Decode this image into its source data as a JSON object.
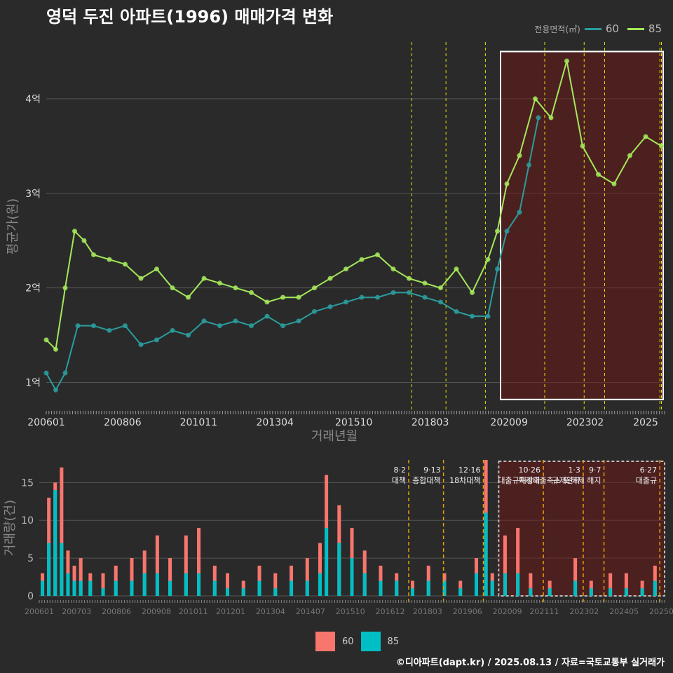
{
  "title": "영덕 두진 아파트(1996) 매매가격 변화",
  "legend": {
    "title": "전용면적(㎡)",
    "items": [
      {
        "label": "60",
        "line_color": "#2a9d9d",
        "bar_color": "#f8766d"
      },
      {
        "label": "85",
        "line_color": "#a4e85a",
        "bar_color": "#00bfc4"
      }
    ]
  },
  "credit": "©디아파트(dapt.kr) / 2025.08.13 / 자료=국토교통부 실거래가",
  "chart_data": [
    {
      "type": "line",
      "xlabel": "거래년월",
      "ylabel": "평균가(원)",
      "x_range": [
        2006.0,
        2025.6
      ],
      "ylim": [
        0.7,
        4.6
      ],
      "y_ticks": [
        {
          "v": 1,
          "label": "1억"
        },
        {
          "v": 2,
          "label": "2억"
        },
        {
          "v": 3,
          "label": "3억"
        },
        {
          "v": 4,
          "label": "4억"
        }
      ],
      "x_ticks": [
        {
          "v": 2006.0,
          "label": "200601"
        },
        {
          "v": 2008.42,
          "label": "200806"
        },
        {
          "v": 2010.83,
          "label": "201011"
        },
        {
          "v": 2013.25,
          "label": "201304"
        },
        {
          "v": 2015.75,
          "label": "201510"
        },
        {
          "v": 2018.17,
          "label": "201803"
        },
        {
          "v": 2020.67,
          "label": "202009"
        },
        {
          "v": 2023.08,
          "label": "202302"
        },
        {
          "v": 2025.0,
          "label": "2025"
        }
      ],
      "policy_lines": [
        2017.58,
        2018.67,
        2019.92,
        2021.8,
        2023.05,
        2023.7,
        2025.45,
        2025.5
      ],
      "highlight_box": {
        "x": [
          2020.4,
          2025.6
        ],
        "y": [
          0.82,
          4.5
        ]
      },
      "series": [
        {
          "name": "60",
          "x": [
            2006.0,
            2006.3,
            2006.6,
            2007.0,
            2007.5,
            2008.0,
            2008.5,
            2009.0,
            2009.5,
            2010.0,
            2010.5,
            2011.0,
            2011.5,
            2012.0,
            2012.5,
            2013.0,
            2013.5,
            2014.0,
            2014.5,
            2015.0,
            2015.5,
            2016.0,
            2016.5,
            2017.0,
            2017.5,
            2018.0,
            2018.5,
            2019.0,
            2019.5,
            2020.0,
            2020.3,
            2020.6,
            2021.0,
            2021.3,
            2021.6
          ],
          "y": [
            1.1,
            0.92,
            1.1,
            1.6,
            1.6,
            1.55,
            1.6,
            1.4,
            1.45,
            1.55,
            1.5,
            1.65,
            1.6,
            1.65,
            1.6,
            1.7,
            1.6,
            1.65,
            1.75,
            1.8,
            1.85,
            1.9,
            1.9,
            1.95,
            1.95,
            1.9,
            1.85,
            1.75,
            1.7,
            1.7,
            2.2,
            2.6,
            2.8,
            3.3,
            3.8
          ]
        },
        {
          "name": "85",
          "x": [
            2006.0,
            2006.3,
            2006.6,
            2006.9,
            2007.2,
            2007.5,
            2008.0,
            2008.5,
            2009.0,
            2009.5,
            2010.0,
            2010.5,
            2011.0,
            2011.5,
            2012.0,
            2012.5,
            2013.0,
            2013.5,
            2014.0,
            2014.5,
            2015.0,
            2015.5,
            2016.0,
            2016.5,
            2017.0,
            2017.5,
            2018.0,
            2018.5,
            2019.0,
            2019.5,
            2020.0,
            2020.3,
            2020.6,
            2021.0,
            2021.5,
            2022.0,
            2022.5,
            2023.0,
            2023.5,
            2024.0,
            2024.5,
            2025.0,
            2025.5
          ],
          "y": [
            1.45,
            1.35,
            2.0,
            2.6,
            2.5,
            2.35,
            2.3,
            2.25,
            2.1,
            2.2,
            2.0,
            1.9,
            2.1,
            2.05,
            2.0,
            1.95,
            1.85,
            1.9,
            1.9,
            2.0,
            2.1,
            2.2,
            2.3,
            2.35,
            2.2,
            2.1,
            2.05,
            2.0,
            2.2,
            1.95,
            2.3,
            2.6,
            3.1,
            3.4,
            4.0,
            3.8,
            4.4,
            3.5,
            3.2,
            3.1,
            3.4,
            3.6,
            3.5
          ]
        }
      ]
    },
    {
      "type": "bar",
      "ylabel": "거래량(건)",
      "ylim": [
        0,
        18
      ],
      "y_ticks": [
        0,
        5,
        10,
        15
      ],
      "x_ticks": [
        {
          "v": 2006.0,
          "label": "200601"
        },
        {
          "v": 2007.17,
          "label": "200703"
        },
        {
          "v": 2008.42,
          "label": "200806"
        },
        {
          "v": 2009.67,
          "label": "200908"
        },
        {
          "v": 2010.83,
          "label": "201011"
        },
        {
          "v": 2012.0,
          "label": "201201"
        },
        {
          "v": 2013.25,
          "label": "201304"
        },
        {
          "v": 2014.5,
          "label": "201407"
        },
        {
          "v": 2015.75,
          "label": "201510"
        },
        {
          "v": 2017.0,
          "label": "201612"
        },
        {
          "v": 2018.17,
          "label": "201803"
        },
        {
          "v": 2019.42,
          "label": "201906"
        },
        {
          "v": 2020.67,
          "label": "202009"
        },
        {
          "v": 2021.83,
          "label": "202111"
        },
        {
          "v": 2023.08,
          "label": "202302"
        },
        {
          "v": 2024.33,
          "label": "202405"
        },
        {
          "v": 2025.5,
          "label": "20250"
        }
      ],
      "annotations": [
        {
          "x": 2017.58,
          "date": "8·2",
          "text": "대책"
        },
        {
          "x": 2018.67,
          "date": "9·13",
          "text": "종합대책"
        },
        {
          "x": 2019.92,
          "date": "12·16",
          "text": "18차대책"
        },
        {
          "x": 2021.8,
          "date": "10·26",
          "text": "대출규제강화"
        },
        {
          "x": 2023.05,
          "date": "1·3",
          "text": "규제완화"
        },
        {
          "x": 2023.7,
          "date": "9·7",
          "text": "특례대출축소 토허제 해지"
        },
        {
          "x": 2025.45,
          "date": "6·27",
          "text": "대출규"
        }
      ],
      "series": [
        {
          "name": "60",
          "values_note": "monthly counts",
          "x": [
            2006.1,
            2006.3,
            2006.5,
            2006.7,
            2006.9,
            2007.1,
            2007.3,
            2007.6,
            2008.0,
            2008.4,
            2008.9,
            2009.3,
            2009.7,
            2010.1,
            2010.6,
            2011.0,
            2011.5,
            2011.9,
            2012.4,
            2012.9,
            2013.4,
            2013.9,
            2014.4,
            2014.8,
            2015.0,
            2015.4,
            2015.8,
            2016.2,
            2016.7,
            2017.2,
            2017.7,
            2018.2,
            2018.7,
            2019.2,
            2019.7,
            2020.0,
            2020.2,
            2020.6,
            2021.0,
            2021.4,
            2022.0,
            2022.8,
            2023.3,
            2023.9,
            2024.4,
            2024.9,
            2025.3
          ],
          "y": [
            3,
            13,
            15,
            17,
            6,
            4,
            5,
            3,
            3,
            4,
            5,
            6,
            8,
            5,
            8,
            9,
            4,
            3,
            2,
            4,
            3,
            4,
            5,
            7,
            16,
            12,
            9,
            6,
            4,
            3,
            2,
            4,
            3,
            2,
            5,
            18,
            3,
            8,
            9,
            3,
            2,
            5,
            2,
            3,
            3,
            2,
            4
          ]
        },
        {
          "name": "85",
          "x": [
            2006.1,
            2006.3,
            2006.5,
            2006.7,
            2006.9,
            2007.1,
            2007.3,
            2007.6,
            2008.0,
            2008.4,
            2008.9,
            2009.3,
            2009.7,
            2010.1,
            2010.6,
            2011.0,
            2011.5,
            2011.9,
            2012.4,
            2012.9,
            2013.4,
            2013.9,
            2014.4,
            2014.8,
            2015.0,
            2015.4,
            2015.8,
            2016.2,
            2016.7,
            2017.2,
            2017.7,
            2018.2,
            2018.7,
            2019.2,
            2019.7,
            2020.0,
            2020.2,
            2020.6,
            2021.0,
            2021.4,
            2022.0,
            2022.8,
            2023.3,
            2023.9,
            2024.4,
            2024.9,
            2025.3
          ],
          "y": [
            2,
            7,
            14,
            7,
            3,
            2,
            2,
            2,
            1,
            2,
            2,
            3,
            3,
            2,
            3,
            3,
            2,
            1,
            1,
            2,
            1,
            2,
            2,
            3,
            9,
            7,
            5,
            3,
            2,
            2,
            1,
            2,
            2,
            1,
            3,
            11,
            2,
            3,
            3,
            1,
            1,
            2,
            1,
            1,
            1,
            1,
            2
          ]
        }
      ]
    }
  ]
}
